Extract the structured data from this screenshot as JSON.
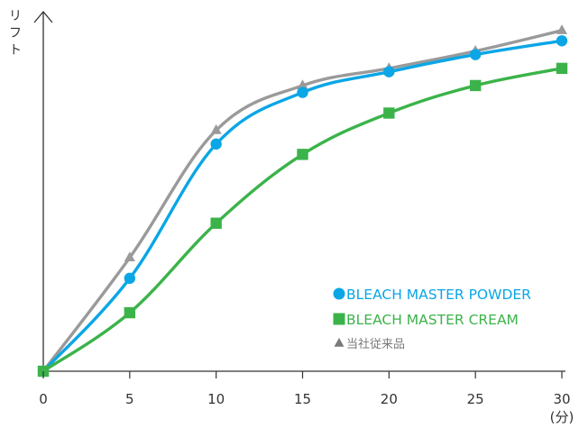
{
  "chart_data": {
    "type": "line",
    "xlabel_unit": "(分)",
    "ylabel": "リフト",
    "x": [
      0,
      5,
      10,
      15,
      20,
      25,
      30
    ],
    "x_ticks": [
      "0",
      "5",
      "10",
      "15",
      "20",
      "25",
      "30"
    ],
    "xlim": [
      0,
      30
    ],
    "ylim": [
      0,
      100
    ],
    "grid": false,
    "legend_position": "bottom-right",
    "series": [
      {
        "name": "当社従来品",
        "marker": "triangle",
        "color": "#9a9a9a",
        "values": [
          0,
          33,
          70,
          83,
          88,
          93,
          99
        ]
      },
      {
        "name": "BLEACH MASTER POWDER",
        "marker": "circle",
        "color": "#0aa6e6",
        "values": [
          0,
          27,
          66,
          81,
          87,
          92,
          96
        ]
      },
      {
        "name": "BLEACH MASTER CREAM",
        "marker": "square",
        "color": "#3bb34a",
        "values": [
          0,
          17,
          43,
          63,
          75,
          83,
          88
        ]
      }
    ]
  },
  "legend": {
    "items": [
      {
        "label": "BLEACH MASTER POWDER",
        "marker": "circle",
        "color": "#0aa6e6"
      },
      {
        "label": "BLEACH MASTER CREAM",
        "marker": "square",
        "color": "#3bb34a"
      },
      {
        "label": "当社従来品",
        "marker": "triangle",
        "color": "#7a7a7a"
      }
    ]
  }
}
